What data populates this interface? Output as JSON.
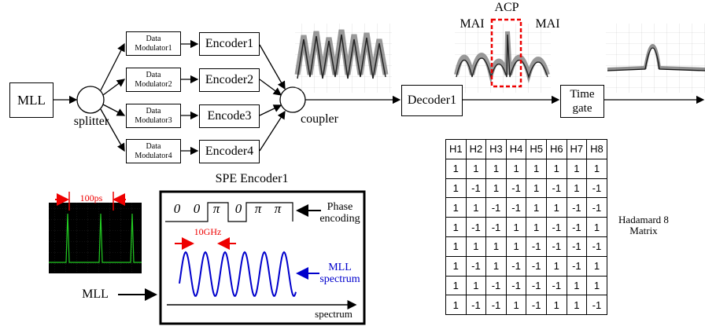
{
  "nodes": {
    "mll": "MLL",
    "splitter": "splitter",
    "modulators": [
      "Data Modulator1",
      "Data Modulator2",
      "Data Modulator3",
      "Data Modulator4"
    ],
    "encoders": [
      "Encoder1",
      "Encoder2",
      "Encode3",
      "Encoder4"
    ],
    "coupler": "coupler",
    "decoder": "Decoder1",
    "time_gate": "Time gate"
  },
  "scope_labels": {
    "mai_left": "MAI",
    "acp": "ACP",
    "mai_right": "MAI"
  },
  "spe_encoder": {
    "title": "SPE Encoder1",
    "pulse_spacing": "100ps",
    "source": "MLL",
    "phases": [
      "0",
      "0",
      "π",
      "0",
      "π",
      "π"
    ],
    "phase_label": "Phase encoding",
    "frequency": "10GHz",
    "spectrum_label": "MLL spectrum",
    "axis_label": "spectrum"
  },
  "table": {
    "header": [
      "H1",
      "H2",
      "H3",
      "H4",
      "H5",
      "H6",
      "H7",
      "H8"
    ],
    "rows": [
      [
        1,
        1,
        1,
        1,
        1,
        1,
        1,
        1
      ],
      [
        1,
        -1,
        1,
        -1,
        1,
        -1,
        1,
        -1
      ],
      [
        1,
        1,
        -1,
        -1,
        1,
        1,
        -1,
        -1
      ],
      [
        1,
        -1,
        -1,
        1,
        1,
        -1,
        -1,
        1
      ],
      [
        1,
        1,
        1,
        1,
        -1,
        -1,
        -1,
        -1
      ],
      [
        1,
        -1,
        1,
        -1,
        -1,
        1,
        -1,
        1
      ],
      [
        1,
        1,
        -1,
        -1,
        -1,
        -1,
        1,
        1
      ],
      [
        1,
        -1,
        -1,
        1,
        -1,
        1,
        1,
        -1
      ]
    ]
  },
  "table_caption": "Hadamard 8 Matrix"
}
